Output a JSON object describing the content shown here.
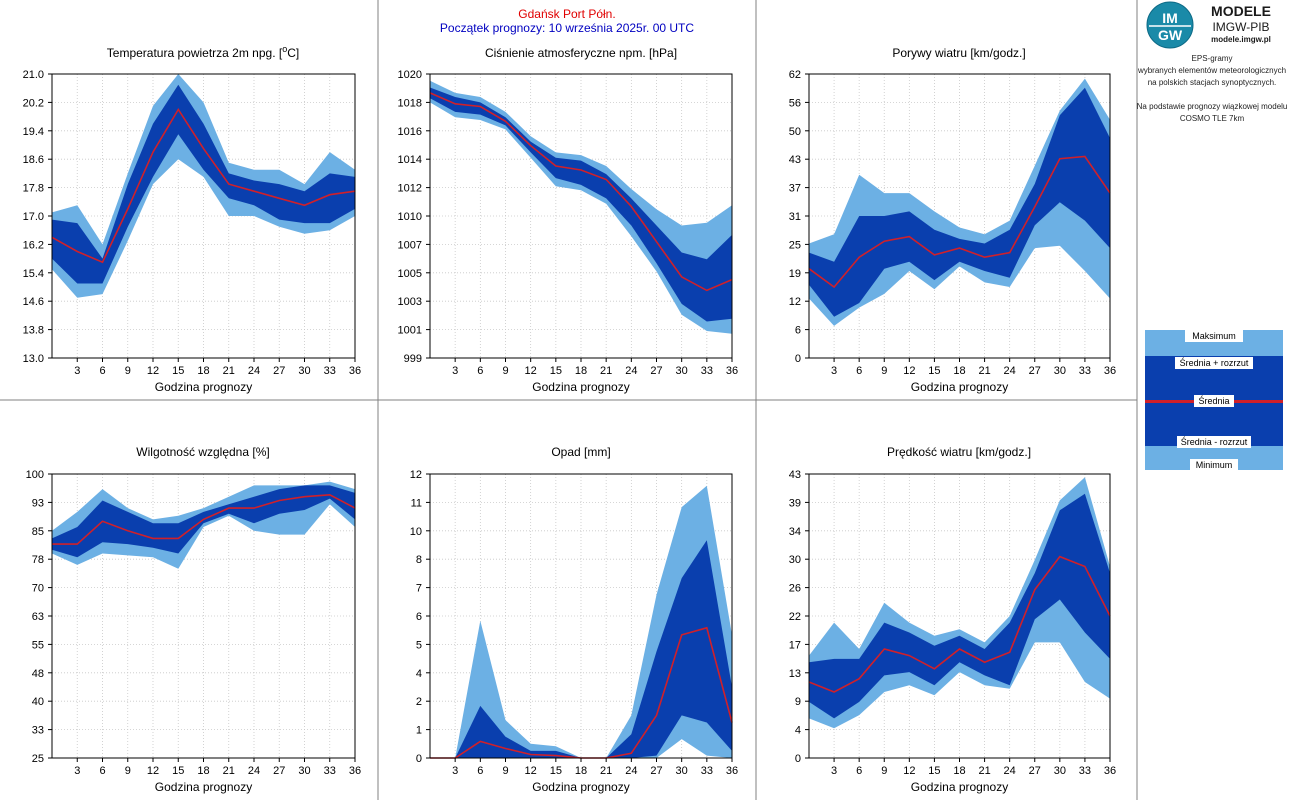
{
  "header": {
    "station": "Gdańsk Port Półn.",
    "forecast_start": "Początek prognozy: 10 września 2025r. 00 UTC",
    "station_color": "#e00000",
    "start_color": "#0000c0"
  },
  "logo": {
    "brand_top": "MODELE",
    "brand_mid": "IMGW-PIB",
    "brand_url": "modele.imgw.pl",
    "mark_lines": [
      "IM",
      "GW"
    ]
  },
  "info": {
    "lines": [
      "EPS-gramy",
      "wybranych elementów meteorologicznych",
      "na polskich stacjach  synoptycznych.",
      "",
      "Na podstawie prognozy wiązkowej modelu",
      "COSMO TLE 7km"
    ]
  },
  "legend": {
    "items": [
      "Maksimum",
      "Średnia + rozrzut",
      "Średnia",
      "Średnia - rozrzut",
      "Minimum"
    ]
  },
  "colors": {
    "outer_band": "#6cb0e4",
    "inner_band": "#0a3fae",
    "mean_line": "#d0202a"
  },
  "chart_data": [
    {
      "type": "area",
      "title": "Temperatura powietrza 2m npg. [°C]",
      "title_parts": [
        "Temperatura powietrza 2m npg. [",
        "o",
        "C]"
      ],
      "xlabel": "Godzina prognozy",
      "x": [
        0,
        3,
        6,
        9,
        12,
        15,
        18,
        21,
        24,
        27,
        30,
        33,
        36
      ],
      "x_ticks": [
        "3",
        "6",
        "9",
        "12",
        "15",
        "18",
        "21",
        "24",
        "27",
        "30",
        "33",
        "36"
      ],
      "ylim": [
        13.0,
        21.0
      ],
      "y_ticks": [
        "13.0",
        "13.8",
        "14.6",
        "15.4",
        "16.2",
        "17.0",
        "17.8",
        "18.6",
        "19.4",
        "20.2",
        "21.0"
      ],
      "max": [
        17.1,
        17.3,
        16.2,
        18.2,
        20.1,
        21.0,
        20.2,
        18.5,
        18.3,
        18.3,
        17.9,
        18.8,
        18.3
      ],
      "mean_plus_spread": [
        16.9,
        16.8,
        15.8,
        17.9,
        19.6,
        20.7,
        19.6,
        18.2,
        18.0,
        17.9,
        17.7,
        18.2,
        18.1
      ],
      "mean": [
        16.4,
        16.0,
        15.7,
        17.2,
        18.8,
        20.0,
        18.9,
        17.9,
        17.7,
        17.5,
        17.3,
        17.6,
        17.7
      ],
      "mean_minus_spread": [
        15.8,
        15.1,
        15.1,
        16.7,
        18.1,
        19.3,
        18.3,
        17.5,
        17.3,
        16.9,
        16.8,
        16.8,
        17.2
      ],
      "min": [
        15.5,
        14.7,
        14.8,
        16.3,
        17.9,
        18.6,
        18.1,
        17.0,
        17.0,
        16.7,
        16.5,
        16.6,
        17.0
      ]
    },
    {
      "type": "area",
      "title": "Ciśnienie atmosferyczne npm. [hPa]",
      "xlabel": "Godzina prognozy",
      "x": [
        0,
        3,
        6,
        9,
        12,
        15,
        18,
        21,
        24,
        27,
        30,
        33,
        36
      ],
      "x_ticks": [
        "3",
        "6",
        "9",
        "12",
        "15",
        "18",
        "21",
        "24",
        "27",
        "30",
        "33",
        "36"
      ],
      "ylim": [
        999,
        1020
      ],
      "y_ticks": [
        "999",
        "1001",
        "1003",
        "1005",
        "1007",
        "1010",
        "1012",
        "1014",
        "1016",
        "1018",
        "1020"
      ],
      "max": [
        1019.5,
        1018.6,
        1018.3,
        1017.2,
        1015.4,
        1014.2,
        1014.0,
        1013.2,
        1011.5,
        1010.0,
        1008.8,
        1009.0,
        1010.3
      ],
      "mean_plus_spread": [
        1019.0,
        1018.3,
        1017.9,
        1016.8,
        1015.0,
        1013.8,
        1013.6,
        1012.6,
        1010.8,
        1008.8,
        1006.8,
        1006.3,
        1008.1
      ],
      "mean": [
        1018.6,
        1017.8,
        1017.6,
        1016.5,
        1014.7,
        1013.2,
        1012.9,
        1012.2,
        1010.2,
        1007.6,
        1005.0,
        1004.0,
        1004.8
      ],
      "mean_minus_spread": [
        1018.2,
        1017.2,
        1017.0,
        1016.2,
        1014.2,
        1012.3,
        1011.8,
        1010.8,
        1008.8,
        1006.0,
        1003.0,
        1001.7,
        1001.9
      ],
      "min": [
        1017.9,
        1016.8,
        1016.6,
        1015.9,
        1013.8,
        1011.7,
        1011.4,
        1010.4,
        1008.0,
        1005.4,
        1002.2,
        1001.0,
        1000.8
      ]
    },
    {
      "type": "area",
      "title": "Porywy wiatru [km/godz.]",
      "xlabel": "Godzina prognozy",
      "x": [
        0,
        3,
        6,
        9,
        12,
        15,
        18,
        21,
        24,
        27,
        30,
        33,
        36
      ],
      "x_ticks": [
        "3",
        "6",
        "9",
        "12",
        "15",
        "18",
        "21",
        "24",
        "27",
        "30",
        "33",
        "36"
      ],
      "ylim": [
        0,
        62
      ],
      "y_ticks": [
        "0",
        "6",
        "12",
        "19",
        "25",
        "31",
        "37",
        "43",
        "50",
        "56",
        "62"
      ],
      "max": [
        25.0,
        27.0,
        40.0,
        36.0,
        36.0,
        32.0,
        28.5,
        27.0,
        30.0,
        42.0,
        54.0,
        61.0,
        52.0
      ],
      "mean_plus_spread": [
        23.0,
        21.0,
        31.0,
        31.0,
        32.0,
        28.0,
        26.0,
        25.0,
        28.0,
        38.0,
        53.0,
        59.0,
        48.0
      ],
      "mean": [
        19.5,
        15.5,
        22.0,
        25.5,
        26.5,
        22.5,
        24.0,
        22.0,
        23.0,
        33.0,
        43.5,
        44.0,
        36.0
      ],
      "mean_minus_spread": [
        16.0,
        9.0,
        12.0,
        19.5,
        21.0,
        17.0,
        21.0,
        19.0,
        17.5,
        29.0,
        34.0,
        30.0,
        24.0
      ],
      "min": [
        13.0,
        7.0,
        11.0,
        14.0,
        19.0,
        15.0,
        20.0,
        16.5,
        15.5,
        24.0,
        24.5,
        19.0,
        13.0
      ]
    },
    {
      "type": "area",
      "title": "Wilgotność względna [%]",
      "xlabel": "Godzina prognozy",
      "x": [
        0,
        3,
        6,
        9,
        12,
        15,
        18,
        21,
        24,
        27,
        30,
        33,
        36
      ],
      "x_ticks": [
        "3",
        "6",
        "9",
        "12",
        "15",
        "18",
        "21",
        "24",
        "27",
        "30",
        "33",
        "36"
      ],
      "ylim": [
        25,
        100
      ],
      "y_ticks": [
        "25",
        "33",
        "40",
        "48",
        "55",
        "63",
        "70",
        "78",
        "85",
        "93",
        "100"
      ],
      "max": [
        85.0,
        90.0,
        96.0,
        91.0,
        88.0,
        89.0,
        91.0,
        94.0,
        97.0,
        97.0,
        97.0,
        98.0,
        96.0
      ],
      "mean_plus_spread": [
        83.0,
        86.0,
        93.0,
        90.0,
        87.0,
        87.0,
        90.0,
        92.0,
        94.0,
        96.0,
        97.0,
        97.0,
        95.0
      ],
      "mean": [
        81.5,
        81.5,
        87.5,
        85.0,
        83.0,
        83.0,
        88.0,
        91.0,
        91.0,
        93.0,
        94.0,
        94.5,
        91.0
      ],
      "mean_minus_spread": [
        80.0,
        78.0,
        82.0,
        81.5,
        80.5,
        79.0,
        87.0,
        89.5,
        87.0,
        89.5,
        90.5,
        93.5,
        88.0
      ],
      "min": [
        79.0,
        76.0,
        79.0,
        78.5,
        78.0,
        75.0,
        86.0,
        89.0,
        85.0,
        84.0,
        84.0,
        92.0,
        86.0
      ]
    },
    {
      "type": "area",
      "title": "Opad [mm]",
      "xlabel": "Godzina prognozy",
      "x": [
        0,
        3,
        6,
        9,
        12,
        15,
        18,
        21,
        24,
        27,
        30,
        33,
        36
      ],
      "x_ticks": [
        "3",
        "6",
        "9",
        "12",
        "15",
        "18",
        "21",
        "24",
        "27",
        "30",
        "33",
        "36"
      ],
      "ylim": [
        0,
        12
      ],
      "y_ticks": [
        "0",
        "1",
        "2",
        "4",
        "5",
        "6",
        "7",
        "8",
        "10",
        "11",
        "12"
      ],
      "max": [
        0,
        0,
        5.8,
        1.6,
        0.6,
        0.5,
        0,
        0,
        1.8,
        6.9,
        10.6,
        11.5,
        5.2
      ],
      "mean_plus_spread": [
        0,
        0,
        2.2,
        0.9,
        0.3,
        0.3,
        0,
        0,
        1.0,
        4.5,
        7.6,
        9.2,
        3.0
      ],
      "mean": [
        0,
        0,
        0.7,
        0.4,
        0.15,
        0.1,
        0,
        0,
        0.2,
        1.8,
        5.2,
        5.5,
        1.5
      ],
      "mean_minus_spread": [
        0,
        0,
        0,
        0,
        0,
        0,
        0,
        0,
        0,
        0.1,
        1.8,
        1.5,
        0.3
      ],
      "min": [
        0,
        0,
        0,
        0,
        0,
        0,
        0,
        0,
        0,
        0,
        0.8,
        0.1,
        0
      ]
    },
    {
      "type": "area",
      "title": "Prędkość wiatru [km/godz.]",
      "xlabel": "Godzina prognozy",
      "x": [
        0,
        3,
        6,
        9,
        12,
        15,
        18,
        21,
        24,
        27,
        30,
        33,
        36
      ],
      "x_ticks": [
        "3",
        "6",
        "9",
        "12",
        "15",
        "18",
        "21",
        "24",
        "27",
        "30",
        "33",
        "36"
      ],
      "ylim": [
        0,
        43
      ],
      "y_ticks": [
        "0",
        "4",
        "9",
        "13",
        "17",
        "22",
        "26",
        "30",
        "34",
        "39",
        "43"
      ],
      "max": [
        15.5,
        20.5,
        16.5,
        23.5,
        20.5,
        18.5,
        19.5,
        17.5,
        21.5,
        30.0,
        39.0,
        42.5,
        29.0
      ],
      "mean_plus_spread": [
        14.5,
        15.0,
        15.0,
        20.5,
        19.0,
        17.0,
        18.5,
        16.5,
        20.5,
        28.0,
        37.5,
        40.0,
        28.0
      ],
      "mean": [
        11.5,
        10.0,
        12.0,
        16.5,
        15.5,
        13.5,
        16.5,
        14.5,
        16.0,
        25.5,
        30.5,
        29.0,
        21.5
      ],
      "mean_minus_spread": [
        8.5,
        6.0,
        8.5,
        12.5,
        13.0,
        11.0,
        14.5,
        12.5,
        11.0,
        21.0,
        24.0,
        19.0,
        15.0
      ],
      "min": [
        6.0,
        4.5,
        6.5,
        10.0,
        11.0,
        9.5,
        13.0,
        11.0,
        10.5,
        17.5,
        17.5,
        11.5,
        9.0
      ]
    }
  ]
}
